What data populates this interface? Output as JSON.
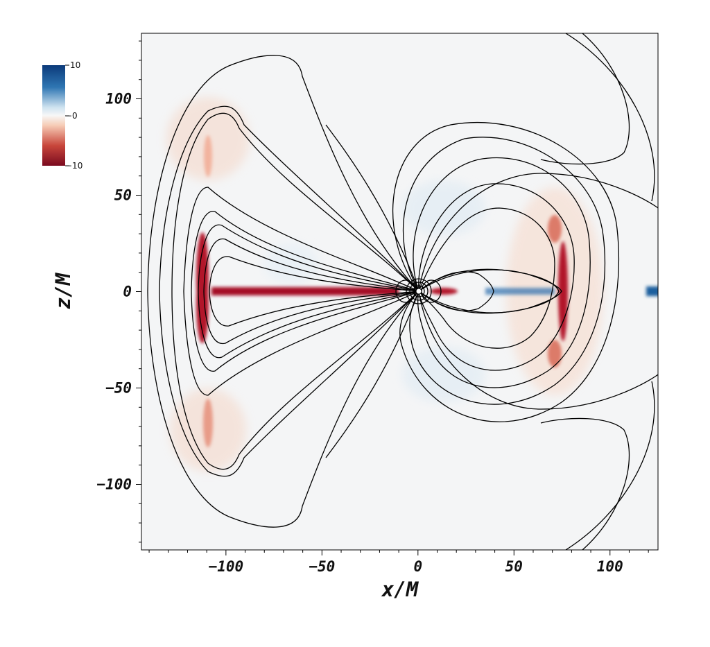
{
  "chart_data": {
    "type": "heatmap",
    "title": "",
    "xlabel": "x/M",
    "ylabel": "z/M",
    "xlim": [
      -144,
      125
    ],
    "ylim": [
      -134,
      134
    ],
    "x_ticks": [
      -100,
      -50,
      0,
      50,
      100
    ],
    "y_ticks": [
      -100,
      -50,
      0,
      50,
      100
    ],
    "x_tick_labels": [
      "−100",
      "−50",
      "0",
      "50",
      "100"
    ],
    "y_tick_labels": [
      "−100",
      "−50",
      "0",
      "50",
      "100"
    ],
    "colorbar": {
      "min": -10,
      "max": 10,
      "tick_labels": [
        "10",
        "−0",
        "−10"
      ],
      "colors": [
        "#08306b",
        "#2166ac",
        "#92c5de",
        "#f7f7f7",
        "#fddbc7",
        "#d6604d",
        "#67001f"
      ]
    },
    "overlay": "black field-line contours"
  }
}
